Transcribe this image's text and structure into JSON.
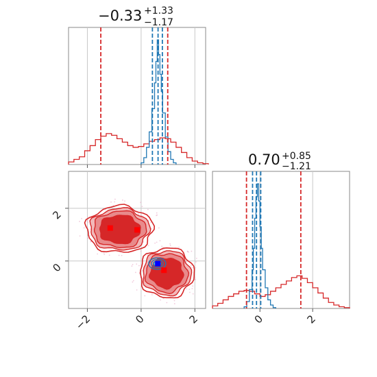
{
  "colors": {
    "red": "#d62728",
    "blue": "#1f77b4",
    "grid": "#c8c8c8",
    "frame": "#888888"
  },
  "chart_data": [
    {
      "type": "histogram",
      "panel": "top-left",
      "title": {
        "value": "−0.33",
        "upper": "+1.33",
        "lower": "−1.17"
      },
      "xlim": [
        -2.7,
        2.4
      ],
      "x_ticks": [
        -2,
        0,
        2
      ],
      "series": [
        {
          "color": "red",
          "x": [
            -2.7,
            -2.5,
            -2.3,
            -2.1,
            -1.9,
            -1.7,
            -1.5,
            -1.3,
            -1.1,
            -0.9,
            -0.7,
            -0.5,
            -0.3,
            -0.1,
            0.1,
            0.3,
            0.5,
            0.7,
            0.9,
            1.1,
            1.3,
            1.5,
            1.7,
            1.9,
            2.1,
            2.3
          ],
          "values": [
            0.3,
            0.6,
            0.9,
            1.6,
            2.2,
            2.9,
            3.3,
            3.6,
            3.4,
            3.0,
            2.6,
            2.2,
            2.0,
            2.1,
            2.4,
            2.7,
            2.9,
            3.1,
            3.0,
            2.6,
            2.0,
            1.4,
            0.8,
            0.4,
            0.2,
            0.1
          ],
          "quantiles": [
            -1.5,
            0.99
          ]
        },
        {
          "color": "blue",
          "x": [
            0.0,
            0.1,
            0.2,
            0.3,
            0.4,
            0.5,
            0.55,
            0.6,
            0.65,
            0.7,
            0.75,
            0.8,
            0.9,
            1.0,
            1.1,
            1.2
          ],
          "values": [
            0.2,
            0.8,
            2.0,
            3.8,
            6.5,
            9.5,
            12.0,
            14.5,
            12.8,
            10.5,
            8.5,
            6.0,
            3.2,
            1.5,
            0.6,
            0.2
          ],
          "quantiles": [
            0.42,
            0.63,
            0.79
          ]
        }
      ]
    },
    {
      "type": "histogram",
      "panel": "bottom-right",
      "title": {
        "value": "0.70",
        "upper": "+0.85",
        "lower": "−1.21"
      },
      "xlim": [
        -1.8,
        3.4
      ],
      "x_ticks": [
        0,
        2
      ],
      "series": [
        {
          "color": "red",
          "x": [
            -1.8,
            -1.6,
            -1.4,
            -1.2,
            -1.0,
            -0.8,
            -0.6,
            -0.4,
            -0.2,
            0.0,
            0.2,
            0.4,
            0.6,
            0.8,
            1.0,
            1.2,
            1.4,
            1.6,
            1.8,
            2.0,
            2.2,
            2.4,
            2.6,
            2.8,
            3.0,
            3.2
          ],
          "values": [
            0.3,
            0.6,
            1.0,
            1.4,
            1.7,
            2.0,
            2.1,
            2.0,
            1.7,
            1.4,
            1.6,
            2.0,
            2.4,
            2.8,
            3.2,
            3.6,
            3.8,
            3.5,
            3.0,
            2.4,
            1.8,
            1.2,
            0.7,
            0.4,
            0.2,
            0.1
          ],
          "quantiles": [
            -0.51,
            1.55
          ]
        },
        {
          "color": "blue",
          "x": [
            -0.6,
            -0.5,
            -0.4,
            -0.3,
            -0.25,
            -0.2,
            -0.15,
            -0.1,
            -0.05,
            0.0,
            0.05,
            0.1,
            0.2,
            0.3,
            0.4,
            0.5
          ],
          "values": [
            0.2,
            0.8,
            2.2,
            4.5,
            7.0,
            10.5,
            13.0,
            14.5,
            12.5,
            9.5,
            7.0,
            4.5,
            2.4,
            1.0,
            0.4,
            0.1
          ],
          "quantiles": [
            -0.28,
            -0.13,
            0.03
          ]
        }
      ]
    },
    {
      "type": "contour",
      "panel": "bottom-left",
      "xlim": [
        -2.7,
        2.4
      ],
      "ylim": [
        -1.8,
        3.4
      ],
      "x_ticks": [
        -2,
        0,
        2
      ],
      "y_ticks": [
        0,
        2
      ],
      "series": [
        {
          "color": "red",
          "clusters": [
            {
              "cx": -0.8,
              "cy": 1.2,
              "rx": 1.05,
              "ry": 0.75
            },
            {
              "cx": 0.95,
              "cy": -0.45,
              "rx": 0.85,
              "ry": 0.8
            }
          ],
          "markers": [
            [
              -1.15,
              1.25
            ],
            [
              -0.15,
              1.18
            ],
            [
              0.85,
              -0.35
            ]
          ]
        },
        {
          "color": "blue",
          "center": [
            0.6,
            -0.1
          ],
          "radius": [
            0.32,
            0.22
          ],
          "markers": [
            [
              0.62,
              -0.1
            ]
          ]
        }
      ]
    }
  ]
}
